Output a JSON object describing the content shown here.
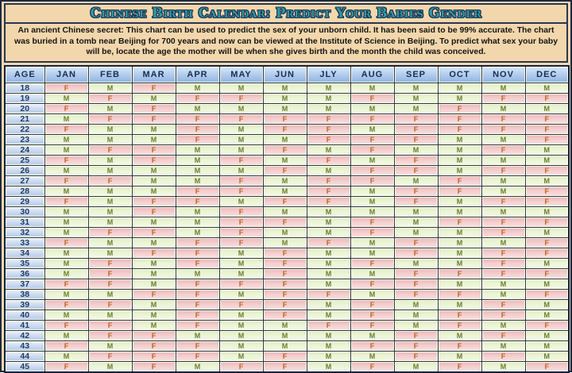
{
  "title": "Chinese Birth Calendar: Predict Your Babies Gender",
  "description": "An ancient Chinese secret:  This chart can be used to predict the sex of your unborn child.  It has been said to be 99% accurate.  The chart was buried in a tomb near Beijing for 700 years and now can be viewed at the Institute of Science in Beijing.  To predict what sex your baby will be, locate the age the mother will be when she gives birth and the month the child was conceived.",
  "colors": {
    "page_background": "#f3d7ac",
    "border": "#1e2940",
    "title_text": "#2e9aa6",
    "title_outline": "#1c2b4a",
    "header_cell_top": "#dbe8f8",
    "header_cell_bottom": "#8fb3e2",
    "header_text": "#1b2e52",
    "age_cell_top": "#f2f6fc",
    "age_cell_bottom": "#b5cbe8",
    "male_cell_top": "#dfedc2",
    "male_cell_bottom": "#f3f9e4",
    "male_letter": "#6b7d2f",
    "female_cell_top": "#ecb5b5",
    "female_cell_bottom": "#f9dede",
    "female_letter": "#bf641f"
  },
  "chart_data": {
    "type": "table",
    "columns": [
      "AGE",
      "JAN",
      "FEB",
      "MAR",
      "APR",
      "MAY",
      "JUN",
      "JLY",
      "AUG",
      "SEP",
      "OCT",
      "NOV",
      "DEC"
    ],
    "rows": [
      {
        "age": "18",
        "values": [
          "F",
          "M",
          "F",
          "M",
          "M",
          "M",
          "M",
          "M",
          "M",
          "M",
          "M",
          "M"
        ]
      },
      {
        "age": "19",
        "values": [
          "M",
          "F",
          "M",
          "F",
          "F",
          "M",
          "M",
          "F",
          "M",
          "M",
          "F",
          "F"
        ]
      },
      {
        "age": "20",
        "values": [
          "F",
          "M",
          "F",
          "M",
          "M",
          "M",
          "M",
          "M",
          "M",
          "F",
          "M",
          "M"
        ]
      },
      {
        "age": "21",
        "values": [
          "M",
          "F",
          "F",
          "F",
          "F",
          "F",
          "F",
          "F",
          "F",
          "F",
          "F",
          "F"
        ]
      },
      {
        "age": "22",
        "values": [
          "F",
          "M",
          "M",
          "F",
          "M",
          "F",
          "F",
          "M",
          "F",
          "F",
          "F",
          "F"
        ]
      },
      {
        "age": "23",
        "values": [
          "M",
          "M",
          "M",
          "F",
          "M",
          "M",
          "F",
          "F",
          "F",
          "M",
          "M",
          "F"
        ]
      },
      {
        "age": "24",
        "values": [
          "M",
          "F",
          "F",
          "M",
          "M",
          "F",
          "M",
          "F",
          "M",
          "M",
          "F",
          "M"
        ]
      },
      {
        "age": "25",
        "values": [
          "F",
          "M",
          "F",
          "M",
          "F",
          "M",
          "F",
          "M",
          "F",
          "M",
          "M",
          "M"
        ]
      },
      {
        "age": "26",
        "values": [
          "M",
          "M",
          "M",
          "M",
          "M",
          "F",
          "M",
          "F",
          "F",
          "M",
          "F",
          "F"
        ]
      },
      {
        "age": "27",
        "values": [
          "F",
          "F",
          "M",
          "M",
          "F",
          "M",
          "F",
          "F",
          "M",
          "F",
          "M",
          "M"
        ]
      },
      {
        "age": "28",
        "values": [
          "M",
          "M",
          "M",
          "F",
          "F",
          "M",
          "F",
          "M",
          "F",
          "F",
          "M",
          "F"
        ]
      },
      {
        "age": "29",
        "values": [
          "F",
          "M",
          "F",
          "F",
          "M",
          "F",
          "F",
          "M",
          "F",
          "M",
          "F",
          "F"
        ]
      },
      {
        "age": "30",
        "values": [
          "M",
          "M",
          "F",
          "M",
          "F",
          "M",
          "M",
          "M",
          "M",
          "M",
          "M",
          "M"
        ]
      },
      {
        "age": "31",
        "values": [
          "M",
          "M",
          "M",
          "M",
          "F",
          "F",
          "M",
          "F",
          "M",
          "F",
          "F",
          "F"
        ]
      },
      {
        "age": "32",
        "values": [
          "M",
          "F",
          "F",
          "M",
          "F",
          "M",
          "M",
          "F",
          "M",
          "M",
          "F",
          "M"
        ]
      },
      {
        "age": "33",
        "values": [
          "F",
          "M",
          "M",
          "F",
          "F",
          "M",
          "F",
          "M",
          "F",
          "M",
          "M",
          "F"
        ]
      },
      {
        "age": "34",
        "values": [
          "M",
          "M",
          "F",
          "F",
          "M",
          "F",
          "M",
          "M",
          "F",
          "M",
          "F",
          "F"
        ]
      },
      {
        "age": "35",
        "values": [
          "M",
          "F",
          "M",
          "F",
          "M",
          "F",
          "M",
          "F",
          "M",
          "M",
          "F",
          "M"
        ]
      },
      {
        "age": "36",
        "values": [
          "M",
          "F",
          "M",
          "M",
          "M",
          "F",
          "M",
          "M",
          "F",
          "F",
          "F",
          "F"
        ]
      },
      {
        "age": "37",
        "values": [
          "F",
          "F",
          "M",
          "F",
          "F",
          "F",
          "M",
          "F",
          "F",
          "M",
          "M",
          "M"
        ]
      },
      {
        "age": "38",
        "values": [
          "M",
          "M",
          "F",
          "F",
          "M",
          "F",
          "F",
          "M",
          "F",
          "F",
          "M",
          "F"
        ]
      },
      {
        "age": "39",
        "values": [
          "F",
          "F",
          "M",
          "F",
          "F",
          "F",
          "M",
          "F",
          "M",
          "M",
          "F",
          "M"
        ]
      },
      {
        "age": "40",
        "values": [
          "M",
          "M",
          "M",
          "F",
          "M",
          "F",
          "M",
          "F",
          "M",
          "F",
          "F",
          "M"
        ]
      },
      {
        "age": "41",
        "values": [
          "F",
          "F",
          "M",
          "F",
          "M",
          "M",
          "F",
          "F",
          "M",
          "F",
          "M",
          "F"
        ]
      },
      {
        "age": "42",
        "values": [
          "M",
          "F",
          "F",
          "M",
          "M",
          "M",
          "M",
          "M",
          "F",
          "M",
          "F",
          "M"
        ]
      },
      {
        "age": "43",
        "values": [
          "F",
          "M",
          "F",
          "F",
          "M",
          "M",
          "M",
          "F",
          "F",
          "F",
          "M",
          "M"
        ]
      },
      {
        "age": "44",
        "values": [
          "M",
          "F",
          "F",
          "F",
          "M",
          "F",
          "M",
          "M",
          "F",
          "M",
          "F",
          "M"
        ]
      },
      {
        "age": "45",
        "values": [
          "F",
          "M",
          "F",
          "M",
          "F",
          "F",
          "M",
          "F",
          "M",
          "F",
          "M",
          "F"
        ]
      }
    ]
  }
}
